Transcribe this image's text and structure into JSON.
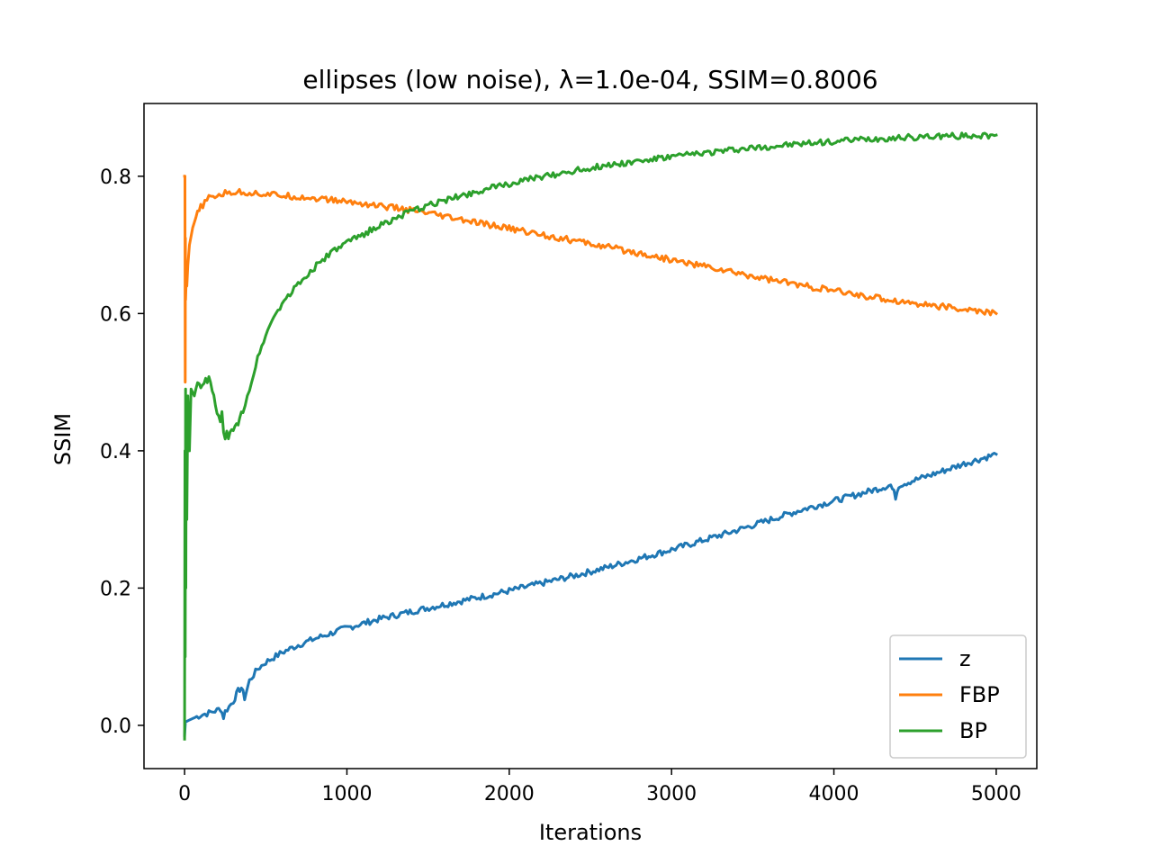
{
  "chart_data": {
    "type": "line",
    "title": "ellipses (low noise), λ=1.0e-04, SSIM=0.8006",
    "xlabel": "Iterations",
    "ylabel": "SSIM",
    "xlim": [
      -250,
      5250
    ],
    "ylim": [
      -0.063,
      0.906
    ],
    "xticks": [
      0,
      1000,
      2000,
      3000,
      4000,
      5000
    ],
    "xtick_labels": [
      "0",
      "1000",
      "2000",
      "3000",
      "4000",
      "5000"
    ],
    "yticks": [
      0.0,
      0.2,
      0.4,
      0.6,
      0.8
    ],
    "ytick_labels": [
      "0.0",
      "0.2",
      "0.4",
      "0.6",
      "0.8"
    ],
    "grid": false,
    "legend_position": "bottom-right",
    "series": [
      {
        "name": "z",
        "color": "#1f77b4",
        "x": [
          0,
          5,
          50,
          100,
          150,
          200,
          220,
          240,
          250,
          300,
          330,
          350,
          370,
          400,
          450,
          500,
          600,
          700,
          800,
          900,
          1000,
          1200,
          1400,
          1600,
          1800,
          2000,
          2200,
          2400,
          2600,
          2800,
          3000,
          3200,
          3400,
          3600,
          3800,
          4000,
          4200,
          4350,
          4380,
          4400,
          4600,
          4800,
          5000
        ],
        "y": [
          -0.015,
          0.005,
          0.01,
          0.015,
          0.018,
          0.022,
          0.025,
          0.012,
          0.02,
          0.035,
          0.05,
          0.055,
          0.04,
          0.065,
          0.082,
          0.092,
          0.106,
          0.117,
          0.126,
          0.134,
          0.142,
          0.155,
          0.166,
          0.176,
          0.186,
          0.196,
          0.207,
          0.218,
          0.23,
          0.243,
          0.256,
          0.27,
          0.284,
          0.299,
          0.314,
          0.327,
          0.34,
          0.35,
          0.333,
          0.35,
          0.365,
          0.381,
          0.395
        ]
      },
      {
        "name": "FBP",
        "color": "#ff7f0e",
        "x": [
          0,
          2,
          4,
          5,
          6,
          10,
          14,
          20,
          30,
          50,
          70,
          100,
          150,
          200,
          250,
          300,
          400,
          500,
          600,
          700,
          800,
          1000,
          1200,
          1400,
          1600,
          1800,
          2000,
          2200,
          2400,
          2600,
          2800,
          3000,
          3200,
          3400,
          3600,
          3800,
          4000,
          4200,
          4400,
          4600,
          4800,
          5000
        ],
        "y": [
          0.8,
          0.8,
          0.5,
          0.71,
          0.62,
          0.65,
          0.64,
          0.67,
          0.7,
          0.725,
          0.74,
          0.755,
          0.768,
          0.772,
          0.775,
          0.777,
          0.776,
          0.774,
          0.772,
          0.77,
          0.768,
          0.763,
          0.757,
          0.75,
          0.741,
          0.732,
          0.724,
          0.715,
          0.706,
          0.697,
          0.688,
          0.678,
          0.669,
          0.659,
          0.65,
          0.641,
          0.633,
          0.625,
          0.618,
          0.612,
          0.606,
          0.6
        ]
      },
      {
        "name": "BP",
        "color": "#2ca02c",
        "x": [
          0,
          2,
          4,
          6,
          8,
          10,
          14,
          20,
          30,
          40,
          60,
          80,
          100,
          120,
          150,
          170,
          190,
          200,
          220,
          230,
          240,
          250,
          260,
          270,
          300,
          330,
          360,
          400,
          450,
          500,
          550,
          600,
          700,
          800,
          900,
          1000,
          1200,
          1400,
          1600,
          1800,
          2000,
          2200,
          2400,
          2600,
          2800,
          3000,
          3200,
          3400,
          3600,
          3800,
          4000,
          4200,
          4400,
          4600,
          4800,
          5000
        ],
        "y": [
          -0.02,
          0.4,
          0.1,
          0.49,
          0.2,
          0.44,
          0.3,
          0.48,
          0.4,
          0.49,
          0.48,
          0.5,
          0.49,
          0.5,
          0.505,
          0.49,
          0.465,
          0.455,
          0.44,
          0.46,
          0.43,
          0.415,
          0.425,
          0.42,
          0.43,
          0.44,
          0.46,
          0.49,
          0.535,
          0.57,
          0.595,
          0.615,
          0.643,
          0.667,
          0.688,
          0.703,
          0.728,
          0.749,
          0.765,
          0.778,
          0.789,
          0.799,
          0.808,
          0.816,
          0.822,
          0.828,
          0.834,
          0.839,
          0.843,
          0.847,
          0.851,
          0.854,
          0.856,
          0.858,
          0.859,
          0.86
        ]
      }
    ]
  }
}
